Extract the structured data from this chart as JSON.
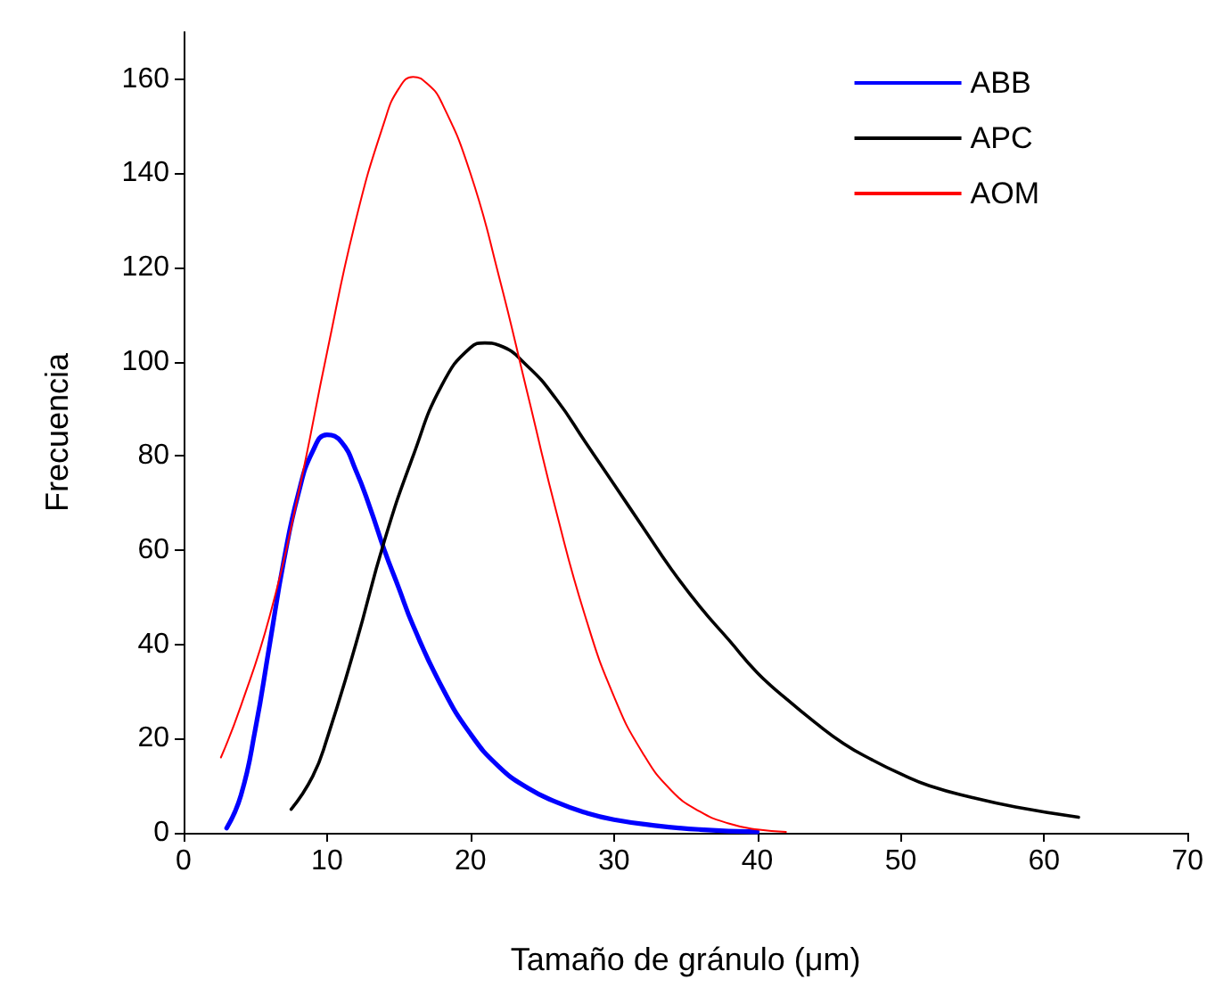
{
  "chart_data": {
    "type": "line",
    "xlabel": "Tamaño de gránulo (μm)",
    "ylabel": "Frecuencia",
    "xlim": [
      0,
      70
    ],
    "xticks": [
      0,
      10,
      20,
      30,
      40,
      50,
      60,
      70
    ],
    "ylim": [
      0,
      170
    ],
    "yticks": [
      0,
      20,
      40,
      60,
      80,
      100,
      120,
      140,
      160
    ],
    "grid": false,
    "legend": "top right",
    "marker": "none",
    "line_style": "solid",
    "series": [
      {
        "name": "ABB",
        "color": "#0000ff",
        "x": [
          3,
          4,
          5,
          6,
          7,
          8,
          9,
          10,
          11,
          12,
          13,
          14,
          15,
          16,
          18,
          20,
          22,
          24,
          26,
          28,
          30,
          33,
          36,
          40
        ],
        "values": [
          1,
          8,
          22,
          40,
          58,
          72,
          81,
          84.5,
          83,
          77,
          69,
          60,
          52,
          44,
          31,
          21,
          14,
          9.5,
          6.5,
          4.3,
          2.8,
          1.5,
          0.7,
          0.2
        ]
      },
      {
        "name": "APC",
        "color": "#000000",
        "x": [
          7.5,
          9,
          10,
          12,
          14,
          16,
          18,
          20,
          21,
          22,
          24,
          26,
          28,
          30,
          32,
          34,
          36,
          38,
          40,
          42,
          44,
          46,
          48,
          50,
          52,
          55,
          58,
          62.4
        ],
        "values": [
          5,
          12,
          20,
          40,
          62,
          80,
          95,
          103,
          104,
          103.5,
          99,
          92,
          83,
          74,
          65,
          56,
          48,
          41,
          34,
          28.5,
          23.5,
          19,
          15.5,
          12.5,
          10,
          7.5,
          5.5,
          3.3
        ]
      },
      {
        "name": "AOM",
        "color": "#ff0000",
        "x": [
          2.6,
          4,
          6,
          8,
          10,
          12,
          14,
          15,
          16,
          17,
          18,
          20,
          22,
          24,
          26,
          28,
          30,
          32,
          34,
          36,
          38,
          40,
          42
        ],
        "values": [
          16,
          27,
          46,
          72,
          102,
          130,
          151,
          158,
          160.5,
          159,
          155,
          140,
          118,
          93,
          68,
          46,
          29,
          17,
          9,
          4.5,
          2,
          0.7,
          0.2
        ]
      }
    ]
  }
}
